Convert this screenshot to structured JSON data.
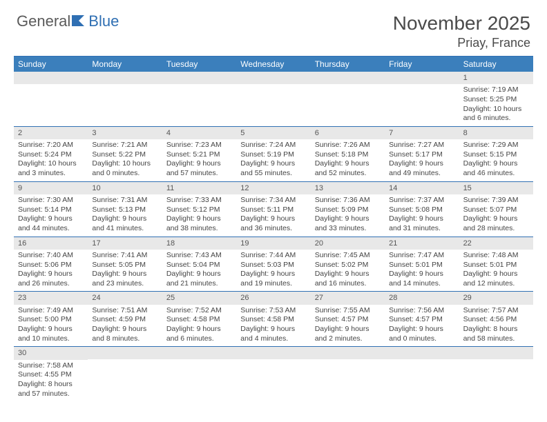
{
  "logo": {
    "part1": "General",
    "part2": "Blue"
  },
  "header": {
    "month_title": "November 2025",
    "location": "Priay, France"
  },
  "weekdays": [
    "Sunday",
    "Monday",
    "Tuesday",
    "Wednesday",
    "Thursday",
    "Friday",
    "Saturday"
  ],
  "labels": {
    "sunrise": "Sunrise:",
    "sunset": "Sunset:",
    "daylight": "Daylight:"
  },
  "colors": {
    "header_bg": "#3b7fbc",
    "header_text": "#ffffff",
    "border": "#2f6fb3",
    "date_band_bg": "#e8e8e8",
    "text": "#444444",
    "logo_gray": "#5a5a5a",
    "logo_blue": "#2f6fb3"
  },
  "weeks": [
    [
      {
        "date": "",
        "sunrise": "",
        "sunset": "",
        "daylight": ""
      },
      {
        "date": "",
        "sunrise": "",
        "sunset": "",
        "daylight": ""
      },
      {
        "date": "",
        "sunrise": "",
        "sunset": "",
        "daylight": ""
      },
      {
        "date": "",
        "sunrise": "",
        "sunset": "",
        "daylight": ""
      },
      {
        "date": "",
        "sunrise": "",
        "sunset": "",
        "daylight": ""
      },
      {
        "date": "",
        "sunrise": "",
        "sunset": "",
        "daylight": ""
      },
      {
        "date": "1",
        "sunrise": "7:19 AM",
        "sunset": "5:25 PM",
        "daylight": "10 hours and 6 minutes."
      }
    ],
    [
      {
        "date": "2",
        "sunrise": "7:20 AM",
        "sunset": "5:24 PM",
        "daylight": "10 hours and 3 minutes."
      },
      {
        "date": "3",
        "sunrise": "7:21 AM",
        "sunset": "5:22 PM",
        "daylight": "10 hours and 0 minutes."
      },
      {
        "date": "4",
        "sunrise": "7:23 AM",
        "sunset": "5:21 PM",
        "daylight": "9 hours and 57 minutes."
      },
      {
        "date": "5",
        "sunrise": "7:24 AM",
        "sunset": "5:19 PM",
        "daylight": "9 hours and 55 minutes."
      },
      {
        "date": "6",
        "sunrise": "7:26 AM",
        "sunset": "5:18 PM",
        "daylight": "9 hours and 52 minutes."
      },
      {
        "date": "7",
        "sunrise": "7:27 AM",
        "sunset": "5:17 PM",
        "daylight": "9 hours and 49 minutes."
      },
      {
        "date": "8",
        "sunrise": "7:29 AM",
        "sunset": "5:15 PM",
        "daylight": "9 hours and 46 minutes."
      }
    ],
    [
      {
        "date": "9",
        "sunrise": "7:30 AM",
        "sunset": "5:14 PM",
        "daylight": "9 hours and 44 minutes."
      },
      {
        "date": "10",
        "sunrise": "7:31 AM",
        "sunset": "5:13 PM",
        "daylight": "9 hours and 41 minutes."
      },
      {
        "date": "11",
        "sunrise": "7:33 AM",
        "sunset": "5:12 PM",
        "daylight": "9 hours and 38 minutes."
      },
      {
        "date": "12",
        "sunrise": "7:34 AM",
        "sunset": "5:11 PM",
        "daylight": "9 hours and 36 minutes."
      },
      {
        "date": "13",
        "sunrise": "7:36 AM",
        "sunset": "5:09 PM",
        "daylight": "9 hours and 33 minutes."
      },
      {
        "date": "14",
        "sunrise": "7:37 AM",
        "sunset": "5:08 PM",
        "daylight": "9 hours and 31 minutes."
      },
      {
        "date": "15",
        "sunrise": "7:39 AM",
        "sunset": "5:07 PM",
        "daylight": "9 hours and 28 minutes."
      }
    ],
    [
      {
        "date": "16",
        "sunrise": "7:40 AM",
        "sunset": "5:06 PM",
        "daylight": "9 hours and 26 minutes."
      },
      {
        "date": "17",
        "sunrise": "7:41 AM",
        "sunset": "5:05 PM",
        "daylight": "9 hours and 23 minutes."
      },
      {
        "date": "18",
        "sunrise": "7:43 AM",
        "sunset": "5:04 PM",
        "daylight": "9 hours and 21 minutes."
      },
      {
        "date": "19",
        "sunrise": "7:44 AM",
        "sunset": "5:03 PM",
        "daylight": "9 hours and 19 minutes."
      },
      {
        "date": "20",
        "sunrise": "7:45 AM",
        "sunset": "5:02 PM",
        "daylight": "9 hours and 16 minutes."
      },
      {
        "date": "21",
        "sunrise": "7:47 AM",
        "sunset": "5:01 PM",
        "daylight": "9 hours and 14 minutes."
      },
      {
        "date": "22",
        "sunrise": "7:48 AM",
        "sunset": "5:01 PM",
        "daylight": "9 hours and 12 minutes."
      }
    ],
    [
      {
        "date": "23",
        "sunrise": "7:49 AM",
        "sunset": "5:00 PM",
        "daylight": "9 hours and 10 minutes."
      },
      {
        "date": "24",
        "sunrise": "7:51 AM",
        "sunset": "4:59 PM",
        "daylight": "9 hours and 8 minutes."
      },
      {
        "date": "25",
        "sunrise": "7:52 AM",
        "sunset": "4:58 PM",
        "daylight": "9 hours and 6 minutes."
      },
      {
        "date": "26",
        "sunrise": "7:53 AM",
        "sunset": "4:58 PM",
        "daylight": "9 hours and 4 minutes."
      },
      {
        "date": "27",
        "sunrise": "7:55 AM",
        "sunset": "4:57 PM",
        "daylight": "9 hours and 2 minutes."
      },
      {
        "date": "28",
        "sunrise": "7:56 AM",
        "sunset": "4:57 PM",
        "daylight": "9 hours and 0 minutes."
      },
      {
        "date": "29",
        "sunrise": "7:57 AM",
        "sunset": "4:56 PM",
        "daylight": "8 hours and 58 minutes."
      }
    ],
    [
      {
        "date": "30",
        "sunrise": "7:58 AM",
        "sunset": "4:55 PM",
        "daylight": "8 hours and 57 minutes."
      },
      {
        "date": "",
        "sunrise": "",
        "sunset": "",
        "daylight": ""
      },
      {
        "date": "",
        "sunrise": "",
        "sunset": "",
        "daylight": ""
      },
      {
        "date": "",
        "sunrise": "",
        "sunset": "",
        "daylight": ""
      },
      {
        "date": "",
        "sunrise": "",
        "sunset": "",
        "daylight": ""
      },
      {
        "date": "",
        "sunrise": "",
        "sunset": "",
        "daylight": ""
      },
      {
        "date": "",
        "sunrise": "",
        "sunset": "",
        "daylight": ""
      }
    ]
  ]
}
